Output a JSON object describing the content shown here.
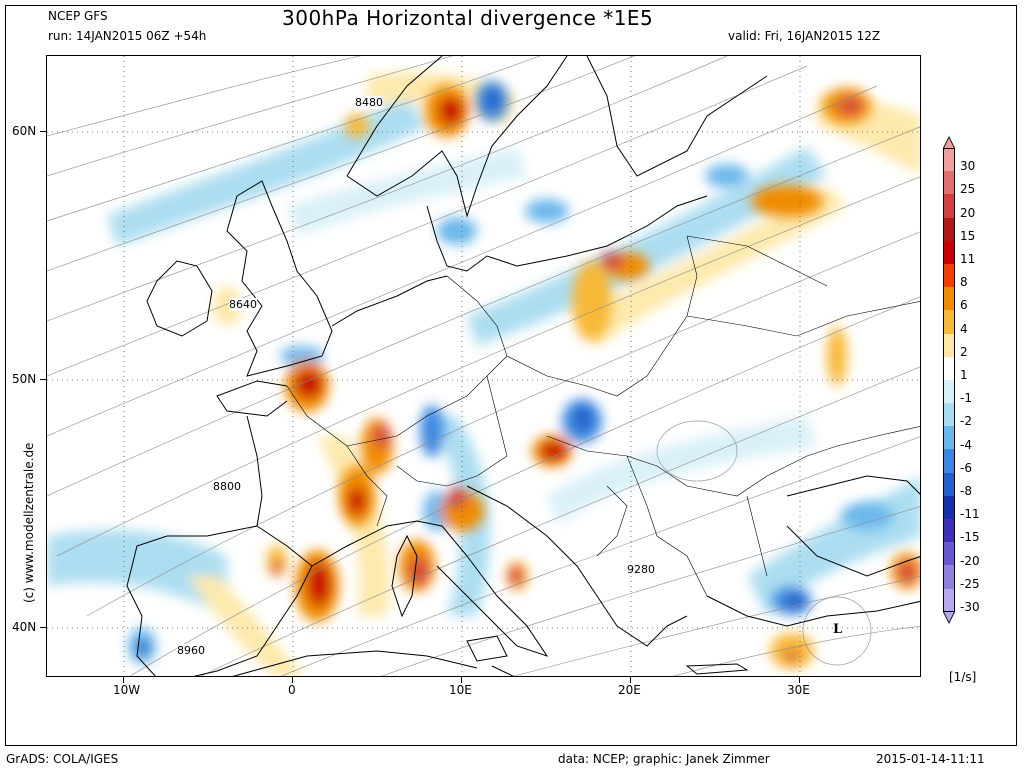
{
  "header": {
    "model": "NCEP GFS",
    "run": "run: 14JAN2015 06Z +54h",
    "title": "300hPa Horizontal divergence *1E5",
    "valid": "valid: Fri, 16JAN2015 12Z"
  },
  "axes": {
    "lat_labels": [
      "60N",
      "50N",
      "40N"
    ],
    "lon_labels": [
      "10W",
      "0",
      "10E",
      "20E",
      "30E"
    ]
  },
  "contour_labels": [
    "8480",
    "8640",
    "8800",
    "9280",
    "8960"
  ],
  "low_marker": "L",
  "watermark": "(c)  www.modellzentrale.de",
  "legend": {
    "unit": "[1/s]",
    "labels": [
      "30",
      "25",
      "20",
      "15",
      "11",
      "8",
      "6",
      "4",
      "2",
      "1",
      "-1",
      "-2",
      "-4",
      "-6",
      "-8",
      "-11",
      "-15",
      "-20",
      "-25",
      "-30"
    ],
    "colors": [
      "#f0a0a0",
      "#e07070",
      "#d04040",
      "#b01818",
      "#c80000",
      "#f04000",
      "#f08c00",
      "#f8b838",
      "#fde8a8",
      "#ffffff",
      "#d8f0f8",
      "#a8dcf0",
      "#6cb8ec",
      "#3c88e0",
      "#2060c8",
      "#1830a8",
      "#4030b8",
      "#6858d0",
      "#9080e0",
      "#b8a8f0"
    ]
  },
  "footer": {
    "left": "GrADS: COLA/IGES",
    "center": "data: NCEP; graphic: Janek Zimmer",
    "right": "2015-01-14-11:11"
  }
}
